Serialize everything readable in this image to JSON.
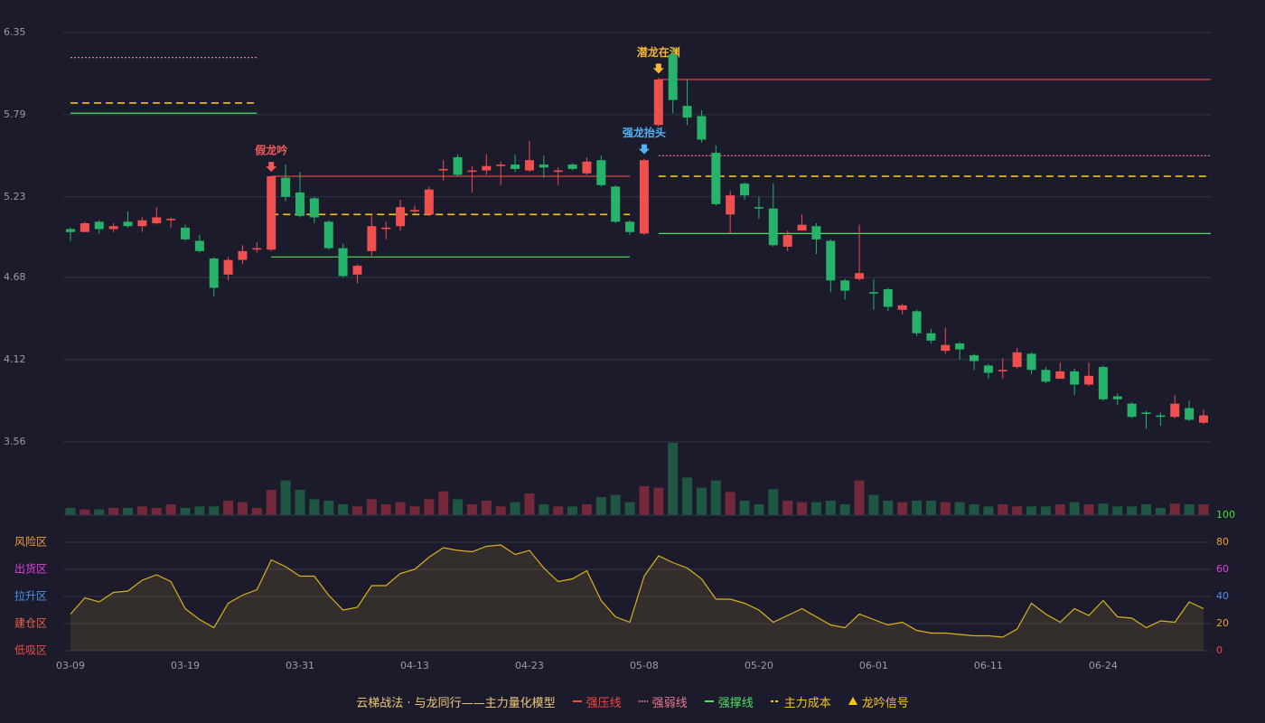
{
  "chart_data": [
    {
      "type": "candlestick",
      "categories": [
        "03-09",
        null,
        null,
        null,
        null,
        null,
        null,
        null,
        "03-19",
        null,
        null,
        null,
        null,
        null,
        null,
        null,
        "03-31",
        null,
        null,
        null,
        null,
        null,
        null,
        null,
        "04-13",
        null,
        null,
        null,
        null,
        null,
        null,
        null,
        "04-23",
        null,
        null,
        null,
        null,
        null,
        null,
        null,
        "05-08",
        null,
        null,
        null,
        null,
        null,
        null,
        null,
        "05-20",
        null,
        null,
        null,
        null,
        null,
        null,
        null,
        "06-01",
        null,
        null,
        null,
        null,
        null,
        null,
        null,
        "06-11",
        null,
        null,
        null,
        null,
        null,
        null,
        null,
        "06-24",
        null,
        null,
        null,
        null,
        null,
        null,
        null
      ],
      "open": [
        5.01,
        4.99,
        5.06,
        5.01,
        5.06,
        5.03,
        5.05,
        5.07,
        5.02,
        4.93,
        4.81,
        4.7,
        4.8,
        4.87,
        4.87,
        5.36,
        5.26,
        5.22,
        5.06,
        4.88,
        4.7,
        4.86,
        5.01,
        5.03,
        5.13,
        5.11,
        5.41,
        5.5,
        5.4,
        5.41,
        5.44,
        5.45,
        5.41,
        5.45,
        5.4,
        5.45,
        5.39,
        5.48,
        5.3,
        5.06,
        4.98,
        5.72,
        6.2,
        5.85,
        5.78,
        5.53,
        5.11,
        5.32,
        5.16,
        5.15,
        4.89,
        5.0,
        5.03,
        4.93,
        4.66,
        4.67,
        4.58,
        4.6,
        4.46,
        4.45,
        4.3,
        4.18,
        4.23,
        4.15,
        4.08,
        4.04,
        4.07,
        4.16,
        4.05,
        3.99,
        4.04,
        3.95,
        4.07,
        3.87,
        3.82,
        3.76,
        3.74,
        3.73,
        3.79,
        3.69
      ],
      "high": [
        5.02,
        5.06,
        5.07,
        5.05,
        5.13,
        5.09,
        5.16,
        5.09,
        5.04,
        4.97,
        4.82,
        4.82,
        4.9,
        4.92,
        5.37,
        5.45,
        5.4,
        5.23,
        5.07,
        4.91,
        4.77,
        5.1,
        5.06,
        5.21,
        5.17,
        5.3,
        5.48,
        5.52,
        5.44,
        5.52,
        5.47,
        5.52,
        5.61,
        5.51,
        5.43,
        5.46,
        5.5,
        5.51,
        5.31,
        5.07,
        5.49,
        6.04,
        6.25,
        6.03,
        5.82,
        5.58,
        5.27,
        5.33,
        5.23,
        5.32,
        5.0,
        5.11,
        5.05,
        4.94,
        4.67,
        5.04,
        4.67,
        4.61,
        4.5,
        4.46,
        4.33,
        4.34,
        4.24,
        4.16,
        4.09,
        4.13,
        4.2,
        4.17,
        4.07,
        4.1,
        4.06,
        4.1,
        4.08,
        3.89,
        3.83,
        3.77,
        3.76,
        3.88,
        3.84,
        3.78
      ],
      "low": [
        4.93,
        4.99,
        4.98,
        4.99,
        5.02,
        4.99,
        5.04,
        5.02,
        4.93,
        4.85,
        4.55,
        4.66,
        4.77,
        4.85,
        4.86,
        5.2,
        5.09,
        5.05,
        4.87,
        4.68,
        4.64,
        4.83,
        4.94,
        5.0,
        5.12,
        5.1,
        5.34,
        5.37,
        5.26,
        5.38,
        5.31,
        5.4,
        5.4,
        5.36,
        5.31,
        5.41,
        5.38,
        5.3,
        5.05,
        4.97,
        4.97,
        5.71,
        5.8,
        5.72,
        5.6,
        5.17,
        4.98,
        5.21,
        5.08,
        4.89,
        4.86,
        5.0,
        4.84,
        4.58,
        4.53,
        4.66,
        4.46,
        4.45,
        4.43,
        4.28,
        4.23,
        4.16,
        4.12,
        4.05,
        3.99,
        3.99,
        4.06,
        4.02,
        3.96,
        3.99,
        3.88,
        3.94,
        3.84,
        3.81,
        3.72,
        3.65,
        3.67,
        3.72,
        3.7,
        3.68
      ],
      "close": [
        4.99,
        5.05,
        5.01,
        5.03,
        5.03,
        5.07,
        5.09,
        5.08,
        4.94,
        4.86,
        4.61,
        4.8,
        4.86,
        4.88,
        5.37,
        5.23,
        5.1,
        5.09,
        4.88,
        4.69,
        4.76,
        5.03,
        5.02,
        5.16,
        5.14,
        5.28,
        5.42,
        5.38,
        5.41,
        5.44,
        5.45,
        5.42,
        5.48,
        5.43,
        5.41,
        5.42,
        5.47,
        5.31,
        5.06,
        4.99,
        5.48,
        6.03,
        5.89,
        5.77,
        5.62,
        5.18,
        5.24,
        5.24,
        5.15,
        4.9,
        4.97,
        5.04,
        4.94,
        4.66,
        4.59,
        4.71,
        4.57,
        4.48,
        4.49,
        4.3,
        4.25,
        4.22,
        4.19,
        4.11,
        4.03,
        4.05,
        4.17,
        4.05,
        3.97,
        4.04,
        3.95,
        4.01,
        3.85,
        3.85,
        3.73,
        3.75,
        3.73,
        3.82,
        3.71,
        3.74
      ],
      "up_color": "#ef4f4f",
      "down_color": "#26b36a",
      "volume": [
        10,
        8,
        8,
        10,
        10,
        12,
        10,
        15,
        10,
        12,
        12,
        20,
        18,
        10,
        35,
        48,
        35,
        22,
        20,
        15,
        12,
        22,
        15,
        18,
        12,
        22,
        33,
        22,
        15,
        20,
        12,
        18,
        30,
        15,
        12,
        12,
        15,
        25,
        28,
        18,
        40,
        38,
        100,
        52,
        38,
        48,
        32,
        20,
        15,
        36,
        20,
        18,
        18,
        20,
        15,
        48,
        28,
        20,
        18,
        20,
        20,
        18,
        18,
        15,
        12,
        15,
        12,
        12,
        12,
        15,
        18,
        15,
        16,
        12,
        12,
        15,
        10,
        16,
        15,
        15
      ],
      "volume_ylim": [
        0,
        100
      ],
      "volume_up_color": "#73293a",
      "volume_down_color": "#1f5644",
      "ylim": [
        3.06,
        6.35
      ],
      "yticks": [
        3.56,
        4.12,
        4.68,
        5.23,
        5.79,
        6.35
      ],
      "grid": true,
      "levels": [
        {
          "legend": 1,
          "value": 6.18,
          "from": 0,
          "to": 13
        },
        {
          "legend": 3,
          "value": 5.87,
          "from": 0,
          "to": 13
        },
        {
          "legend": 2,
          "value": 5.8,
          "from": 0,
          "to": 13
        },
        {
          "legend": 0,
          "value": 5.37,
          "from": 14,
          "to": 39
        },
        {
          "legend": 3,
          "value": 5.11,
          "from": 14,
          "to": 39
        },
        {
          "legend": 2,
          "value": 4.82,
          "from": 14,
          "to": 39
        },
        {
          "legend": 0,
          "value": 6.03,
          "from": 41,
          "to": 79
        },
        {
          "legend": 1,
          "value": 5.51,
          "from": 41,
          "to": 79
        },
        {
          "legend": 3,
          "value": 5.37,
          "from": 41,
          "to": 79
        },
        {
          "legend": 2,
          "value": 4.98,
          "from": 41,
          "to": 79
        }
      ],
      "signals": [
        {
          "index": 14,
          "label": "假龙吟",
          "color": "#f05a5a"
        },
        {
          "index": 40,
          "label": "强龙抬头",
          "color": "#4fb3f5"
        },
        {
          "index": 41,
          "label": "潜龙在渊",
          "color": "#f5b731"
        }
      ],
      "legend": {
        "title": "云梯战法 · 与龙同行——主力量化模型",
        "title_color": "#f0c878",
        "items": [
          {
            "label": "强压线",
            "color": "#f04848",
            "style": "solid"
          },
          {
            "label": "强弱线",
            "color": "#f07890",
            "style": "dotted"
          },
          {
            "label": "强撑线",
            "color": "#4ee060",
            "style": "solid"
          },
          {
            "label": "主力成本",
            "color": "#f5c518",
            "style": "dashed"
          },
          {
            "label": "龙吟信号",
            "color": "#f5c518",
            "style": "triangle"
          }
        ]
      }
    },
    {
      "type": "line",
      "values": [
        27,
        39,
        36,
        43,
        44,
        52,
        56,
        51,
        31,
        23,
        17,
        35,
        41,
        45,
        67,
        62,
        55,
        55,
        41,
        30,
        32,
        48,
        48,
        57,
        60,
        69,
        76,
        74,
        73,
        77,
        78,
        71,
        74,
        61,
        51,
        53,
        59,
        37,
        25,
        21,
        55,
        70,
        65,
        61,
        53,
        38,
        38,
        35,
        30,
        21,
        26,
        31,
        25,
        19,
        17,
        27,
        23,
        19,
        21,
        15,
        13,
        13,
        12,
        11,
        11,
        10,
        16,
        35,
        27,
        21,
        31,
        26,
        37,
        25,
        24,
        17,
        22,
        21,
        36,
        31
      ],
      "color": "#d9b21e",
      "ylim": [
        0,
        100
      ],
      "yticks": [
        0,
        20,
        40,
        60,
        80,
        100
      ],
      "ytick_colors": [
        "#f04848",
        "#f0a030",
        "#4a90f0",
        "#e040e0",
        "#f0a030",
        "#3ee03e"
      ],
      "zones": [
        {
          "value": 80,
          "label": "风险区",
          "color": "#f0a030"
        },
        {
          "value": 60,
          "label": "出货区",
          "color": "#e040e0"
        },
        {
          "value": 40,
          "label": "拉升区",
          "color": "#4a90f0"
        },
        {
          "value": 20,
          "label": "建仓区",
          "color": "#f06048"
        },
        {
          "value": 0,
          "label": "低吸区",
          "color": "#f04848"
        }
      ]
    }
  ]
}
